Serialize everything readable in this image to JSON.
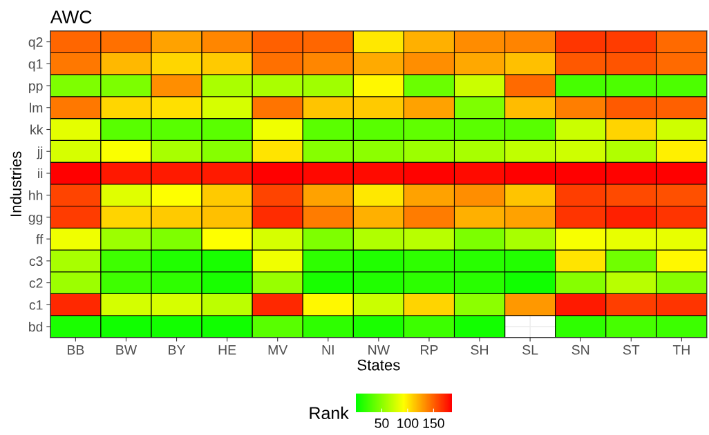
{
  "chart_data": {
    "type": "heatmap",
    "title": "AWC",
    "xlabel": "States",
    "ylabel": "Industries",
    "clabel": "Rank",
    "categories": [
      "BB",
      "BW",
      "BY",
      "HE",
      "MV",
      "NI",
      "NW",
      "RP",
      "SH",
      "SL",
      "SN",
      "ST",
      "TH"
    ],
    "y_categories": [
      "q2",
      "q1",
      "pp",
      "lm",
      "kk",
      "jj",
      "ii",
      "hh",
      "gg",
      "ff",
      "c3",
      "c2",
      "c1",
      "bd"
    ],
    "cells": [
      [
        148,
        144,
        126,
        136,
        150,
        148,
        101,
        121,
        134,
        137,
        165,
        163,
        146
      ],
      [
        141,
        118,
        107,
        112,
        144,
        136,
        123,
        133,
        124,
        115,
        153,
        154,
        146
      ],
      [
        46,
        45,
        133,
        62,
        62,
        58,
        95,
        39,
        73,
        146,
        26,
        28,
        28
      ],
      [
        141,
        107,
        104,
        78,
        143,
        114,
        112,
        126,
        46,
        117,
        139,
        152,
        150
      ],
      [
        83,
        32,
        32,
        33,
        87,
        33,
        32,
        35,
        33,
        32,
        73,
        108,
        75
      ],
      [
        78,
        91,
        61,
        49,
        102,
        49,
        51,
        57,
        61,
        70,
        75,
        64,
        98
      ],
      [
        185,
        176,
        175,
        175,
        185,
        182,
        181,
        184,
        181,
        185,
        185,
        184,
        185
      ],
      [
        160,
        81,
        92,
        112,
        160,
        126,
        101,
        126,
        133,
        114,
        162,
        158,
        156
      ],
      [
        163,
        108,
        112,
        115,
        169,
        140,
        121,
        140,
        121,
        126,
        166,
        173,
        166
      ],
      [
        87,
        57,
        46,
        92,
        78,
        46,
        64,
        67,
        45,
        61,
        90,
        84,
        84
      ],
      [
        61,
        23,
        12,
        9,
        87,
        17,
        12,
        17,
        15,
        13,
        102,
        41,
        95
      ],
      [
        57,
        23,
        17,
        9,
        55,
        9,
        12,
        16,
        15,
        6,
        49,
        67,
        49
      ],
      [
        170,
        77,
        78,
        68,
        170,
        95,
        73,
        108,
        51,
        130,
        175,
        162,
        166
      ],
      [
        10,
        6,
        7,
        6,
        32,
        17,
        10,
        22,
        7,
        null,
        17,
        26,
        22
      ]
    ],
    "clim": [
      0,
      185
    ],
    "cticks": [
      50,
      100,
      150
    ],
    "colors": [
      "#00ff00",
      "#ffff00",
      "#ff0000"
    ],
    "grid": true
  }
}
